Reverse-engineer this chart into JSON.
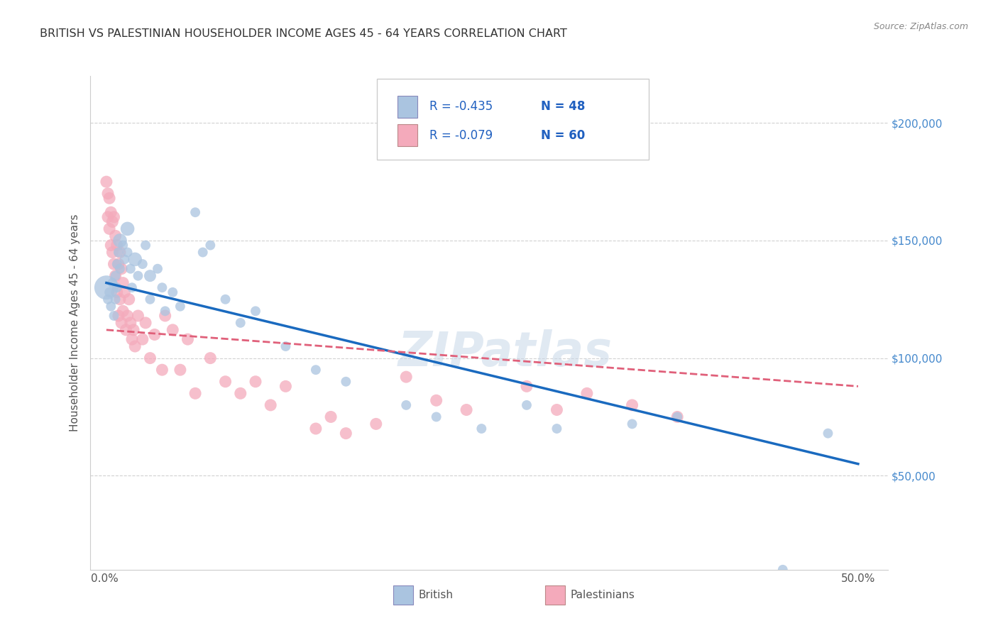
{
  "title": "BRITISH VS PALESTINIAN HOUSEHOLDER INCOME AGES 45 - 64 YEARS CORRELATION CHART",
  "source": "Source: ZipAtlas.com",
  "ylabel": "Householder Income Ages 45 - 64 years",
  "xlabel_ticks_labels": [
    "0.0%",
    "50.0%"
  ],
  "xlabel_ticks_vals": [
    0.0,
    0.5
  ],
  "ylabel_ticks": [
    "$50,000",
    "$100,000",
    "$150,000",
    "$200,000"
  ],
  "ylabel_vals": [
    50000,
    100000,
    150000,
    200000
  ],
  "xlim": [
    -0.01,
    0.52
  ],
  "ylim": [
    10000,
    220000
  ],
  "british_R": -0.435,
  "british_N": 48,
  "palestinian_R": -0.079,
  "palestinian_N": 60,
  "british_color": "#aac4e0",
  "british_edge_color": "#aac4e0",
  "british_line_color": "#1a6abf",
  "palestinian_color": "#f4aabb",
  "palestinian_edge_color": "#f4aabb",
  "palestinian_line_color": "#e0607a",
  "legend_text_color": "#2060c0",
  "watermark": "ZIPatlas",
  "background_color": "#ffffff",
  "grid_color": "#cccccc",
  "title_color": "#333333",
  "right_axis_color": "#4488cc",
  "axis_label_color": "#555555",
  "british_x": [
    0.001,
    0.002,
    0.003,
    0.004,
    0.005,
    0.006,
    0.007,
    0.007,
    0.008,
    0.008,
    0.009,
    0.01,
    0.01,
    0.012,
    0.013,
    0.015,
    0.015,
    0.017,
    0.018,
    0.02,
    0.022,
    0.025,
    0.027,
    0.03,
    0.03,
    0.035,
    0.038,
    0.04,
    0.045,
    0.05,
    0.06,
    0.065,
    0.07,
    0.08,
    0.09,
    0.1,
    0.12,
    0.14,
    0.16,
    0.2,
    0.22,
    0.25,
    0.28,
    0.3,
    0.35,
    0.38,
    0.45,
    0.48
  ],
  "british_y": [
    130000,
    125000,
    128000,
    122000,
    132000,
    118000,
    135000,
    125000,
    140000,
    130000,
    145000,
    150000,
    138000,
    148000,
    142000,
    155000,
    145000,
    138000,
    130000,
    142000,
    135000,
    140000,
    148000,
    135000,
    125000,
    138000,
    130000,
    120000,
    128000,
    122000,
    162000,
    145000,
    148000,
    125000,
    115000,
    120000,
    105000,
    95000,
    90000,
    80000,
    75000,
    70000,
    80000,
    70000,
    72000,
    75000,
    10000,
    68000
  ],
  "british_sizes": [
    600,
    100,
    100,
    100,
    100,
    100,
    100,
    100,
    100,
    100,
    100,
    200,
    100,
    100,
    100,
    200,
    100,
    100,
    100,
    200,
    100,
    100,
    100,
    150,
    100,
    100,
    100,
    100,
    100,
    100,
    100,
    100,
    100,
    100,
    100,
    100,
    100,
    100,
    100,
    100,
    100,
    100,
    100,
    100,
    100,
    100,
    100,
    100
  ],
  "palestinian_x": [
    0.001,
    0.002,
    0.002,
    0.003,
    0.003,
    0.004,
    0.004,
    0.005,
    0.005,
    0.006,
    0.006,
    0.007,
    0.007,
    0.008,
    0.008,
    0.009,
    0.009,
    0.01,
    0.01,
    0.011,
    0.011,
    0.012,
    0.012,
    0.013,
    0.014,
    0.015,
    0.016,
    0.017,
    0.018,
    0.019,
    0.02,
    0.022,
    0.025,
    0.027,
    0.03,
    0.033,
    0.038,
    0.04,
    0.045,
    0.05,
    0.055,
    0.06,
    0.07,
    0.08,
    0.09,
    0.1,
    0.11,
    0.12,
    0.14,
    0.15,
    0.16,
    0.18,
    0.2,
    0.22,
    0.24,
    0.28,
    0.3,
    0.32,
    0.35,
    0.38
  ],
  "palestinian_y": [
    175000,
    170000,
    160000,
    168000,
    155000,
    162000,
    148000,
    158000,
    145000,
    160000,
    140000,
    152000,
    135000,
    148000,
    128000,
    140000,
    118000,
    145000,
    125000,
    138000,
    115000,
    132000,
    120000,
    128000,
    112000,
    118000,
    125000,
    115000,
    108000,
    112000,
    105000,
    118000,
    108000,
    115000,
    100000,
    110000,
    95000,
    118000,
    112000,
    95000,
    108000,
    85000,
    100000,
    90000,
    85000,
    90000,
    80000,
    88000,
    70000,
    75000,
    68000,
    72000,
    92000,
    82000,
    78000,
    88000,
    78000,
    85000,
    80000,
    75000
  ],
  "british_line_x0": 0.001,
  "british_line_x1": 0.5,
  "british_line_y0": 132000,
  "british_line_y1": 55000,
  "palestinian_line_x0": 0.001,
  "palestinian_line_x1": 0.5,
  "palestinian_line_y0": 112000,
  "palestinian_line_y1": 88000
}
